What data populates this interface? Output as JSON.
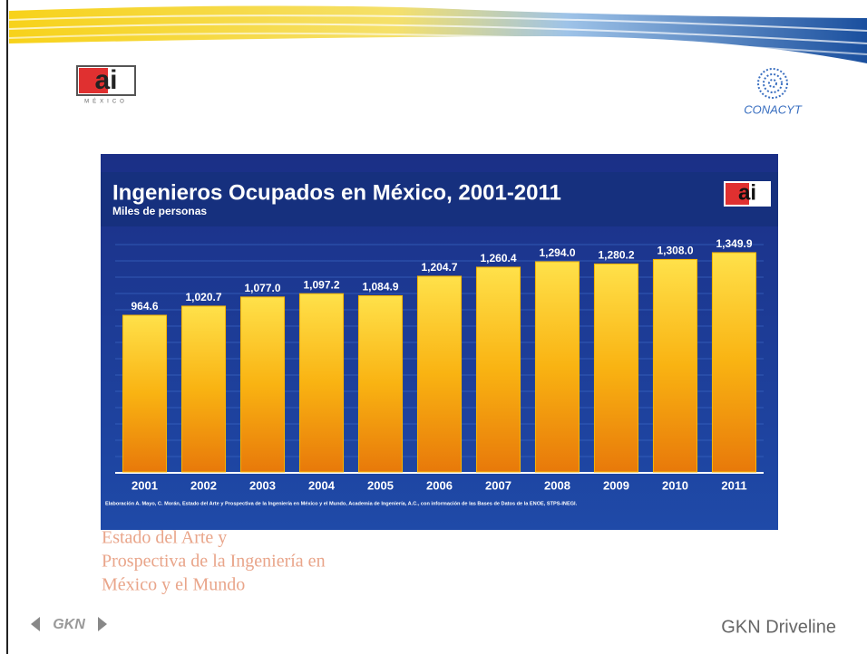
{
  "slide": {
    "logo_left": "ai",
    "logo_left_caption": "MÉXICO",
    "logo_right": "CONACYT",
    "watermark_lines": [
      "Estado del Arte y",
      "Prospectiva de la Ingeniería en",
      "México y el Mundo"
    ],
    "footer_logo": "GKN",
    "footer_brand": "GKN Driveline"
  },
  "chart_data": {
    "type": "bar",
    "title": "Ingenieros Ocupados en México, 2001-2011",
    "subtitle": "Miles de personas",
    "chart_logo": "ai",
    "source": "Elaboración A. Mayo, C. Morán, Estado del Arte y Prospectiva de la Ingeniería en México y el Mundo, Academia de Ingeniería, A.C., con información de las Bases de Datos de la ENOE, STPS-INEGI.",
    "categories": [
      "2001",
      "2002",
      "2003",
      "2004",
      "2005",
      "2006",
      "2007",
      "2008",
      "2009",
      "2010",
      "2011"
    ],
    "values": [
      964.6,
      1020.7,
      1077.0,
      1097.2,
      1084.9,
      1204.7,
      1260.4,
      1294.0,
      1280.2,
      1308.0,
      1349.9
    ],
    "value_labels": [
      "964.6",
      "1,020.7",
      "1,077.0",
      "1,097.2",
      "1,084.9",
      "1,204.7",
      "1,260.4",
      "1,294.0",
      "1,280.2",
      "1,308.0",
      "1,349.9"
    ],
    "color": "#f7b500",
    "ylim": [
      0,
      1500
    ]
  }
}
